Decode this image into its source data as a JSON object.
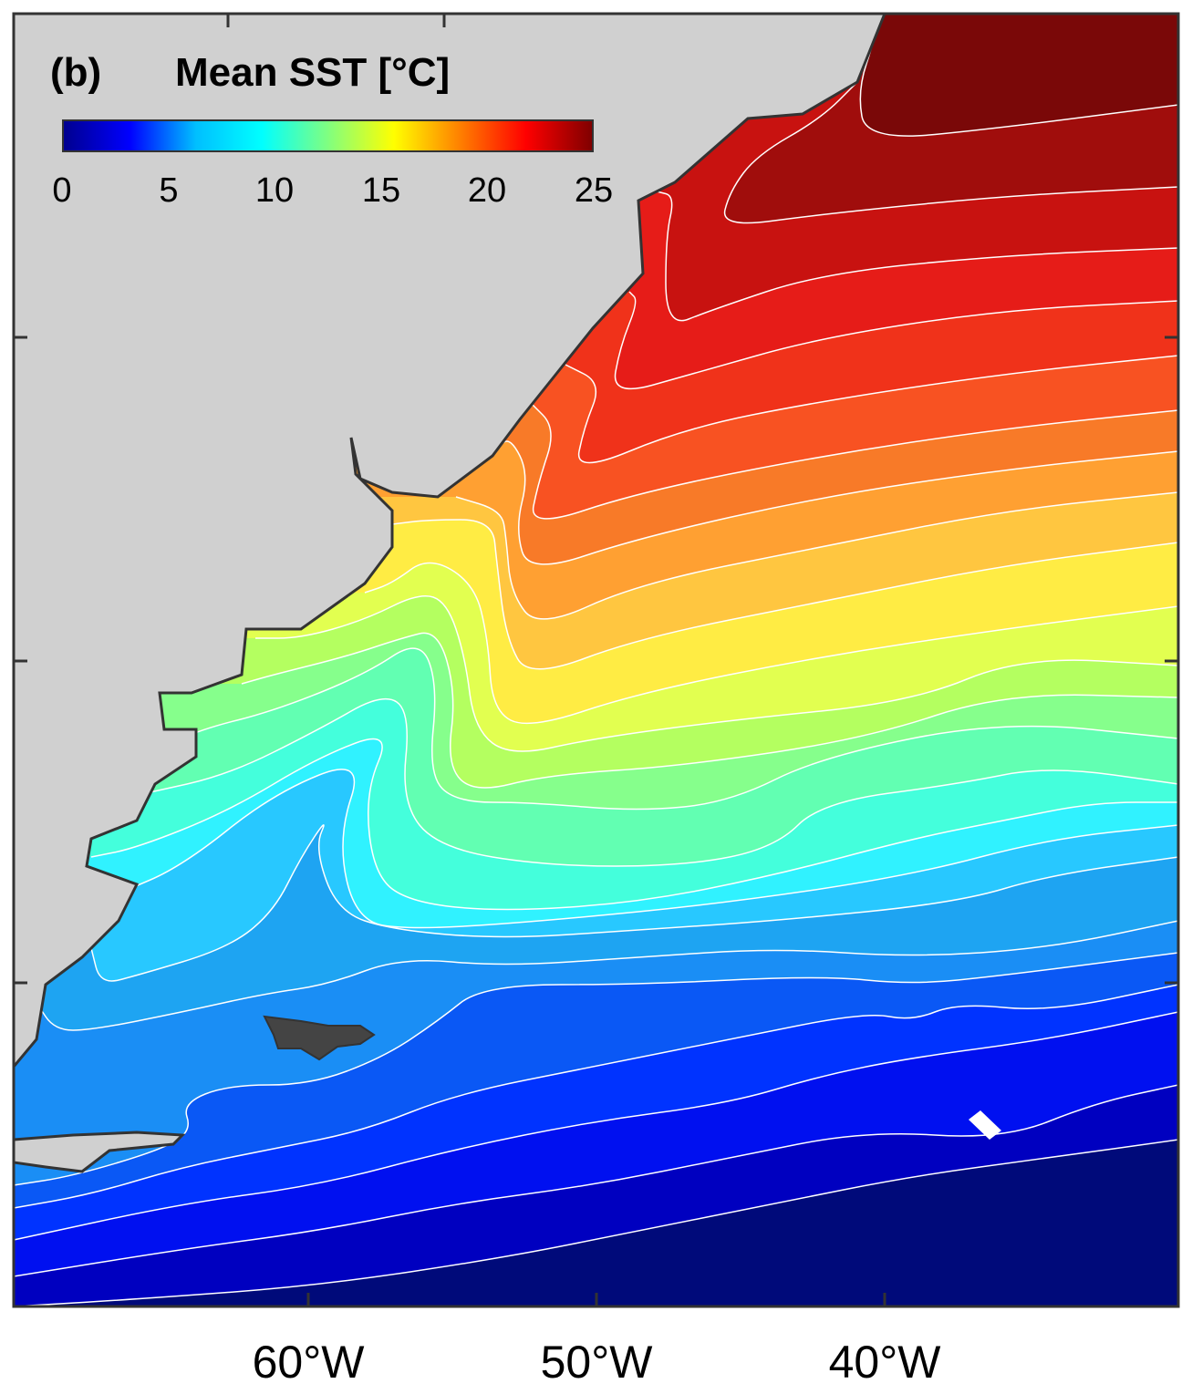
{
  "panel_label": "(b)",
  "title": "Mean SST [°C]",
  "colorbar": {
    "ticks": [
      "0",
      "5",
      "10",
      "15",
      "20",
      "25"
    ],
    "range": [
      0,
      25
    ],
    "colormap": "jet"
  },
  "x_axis": {
    "tick_labels": [
      "60°W",
      "50°W",
      "40°W"
    ]
  },
  "map_data": {
    "type": "filled-contour",
    "variable": "Mean SST",
    "unit": "°C",
    "contour_interval": 1,
    "contour_line_color": "#ffffff",
    "land_color": "#d0d0d0",
    "coastline_color": "#333333",
    "level_colors": {
      "1": "#000a7a",
      "2": "#0000c0",
      "3": "#0010f0",
      "4": "#0033ff",
      "5": "#0a58f5",
      "6": "#1a8ef5",
      "7": "#1ea4f2",
      "8": "#28c8ff",
      "9": "#30f2ff",
      "10": "#44ffdc",
      "11": "#62ffb2",
      "12": "#86ff8c",
      "13": "#b4ff60",
      "14": "#e2ff50",
      "15": "#ffec44",
      "16": "#ffc640",
      "17": "#ffa032",
      "18": "#f87a28",
      "19": "#f85222",
      "20": "#f0321a",
      "21": "#e61c18",
      "22": "#c81210",
      "23": "#a00d0c",
      "24": "#7a0808"
    }
  }
}
